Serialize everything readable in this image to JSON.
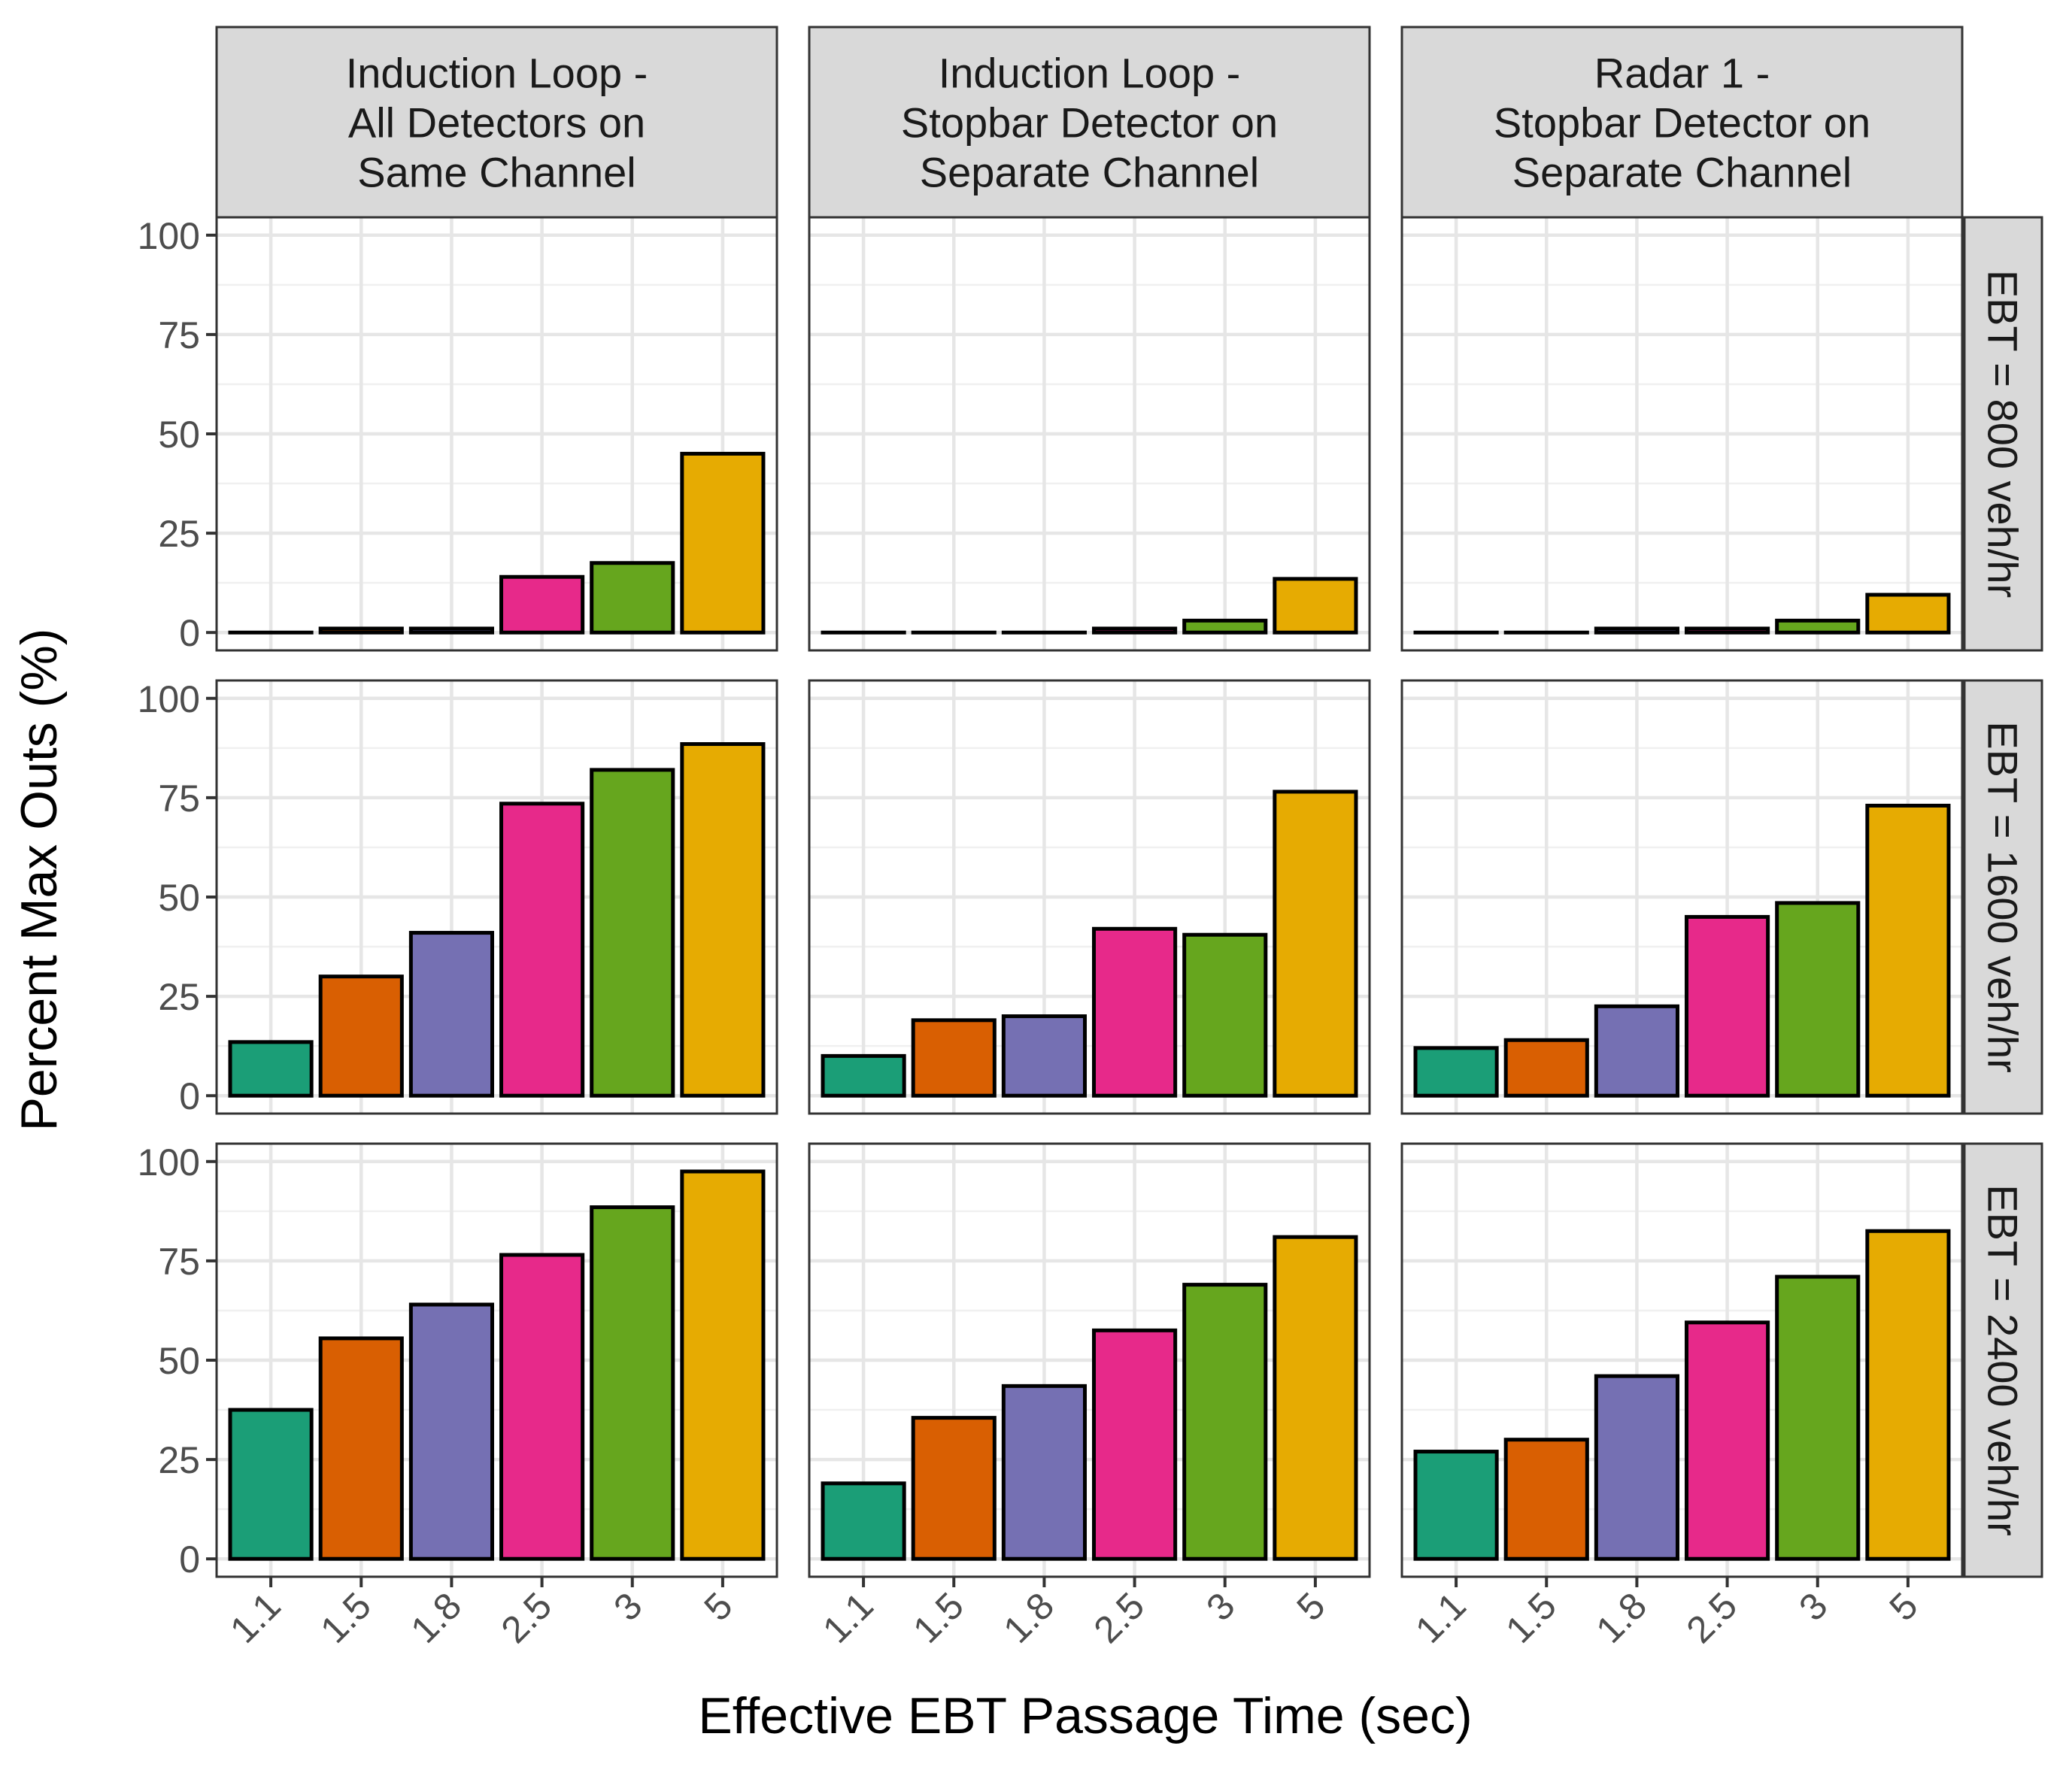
{
  "chart_data": {
    "type": "bar",
    "xlabel": "Effective EBT Passage Time (sec)",
    "ylabel": "Percent Max Outs (%)",
    "ylim": [
      0,
      100
    ],
    "yticks": [
      "0",
      "25",
      "50",
      "75",
      "100"
    ],
    "categories": [
      "1.1",
      "1.5",
      "1.8",
      "2.5",
      "3",
      "5"
    ],
    "colors": [
      "#1b9e77",
      "#d95f02",
      "#7570b3",
      "#e7298a",
      "#66a61e",
      "#e6ab02"
    ],
    "grid": true,
    "columns": [
      {
        "label_lines": [
          "Induction Loop -",
          "All Detectors on",
          "Same Channel"
        ]
      },
      {
        "label_lines": [
          "Induction Loop -",
          "Stopbar Detector on",
          "Separate Channel"
        ]
      },
      {
        "label_lines": [
          "Radar 1 -",
          "Stopbar Detector on",
          "Separate Channel"
        ]
      }
    ],
    "rows": [
      {
        "label": "EBT = 800 veh/hr"
      },
      {
        "label": "EBT = 1600 veh/hr"
      },
      {
        "label": "EBT = 2400 veh/hr"
      }
    ],
    "panels": [
      [
        {
          "values": [
            0,
            1,
            1,
            14,
            17.5,
            45
          ]
        },
        {
          "values": [
            0,
            0,
            0,
            1,
            3,
            13.5
          ]
        },
        {
          "values": [
            0,
            0,
            1,
            1,
            3,
            9.5
          ]
        }
      ],
      [
        {
          "values": [
            13.5,
            30,
            41,
            73.5,
            82,
            88.5
          ]
        },
        {
          "values": [
            10,
            19,
            20,
            42,
            40.5,
            76.5
          ]
        },
        {
          "values": [
            12,
            14,
            22.5,
            45,
            48.5,
            73
          ]
        }
      ],
      [
        {
          "values": [
            37.5,
            55.5,
            64,
            76.5,
            88.5,
            97.5
          ]
        },
        {
          "values": [
            19,
            35.5,
            43.5,
            57.5,
            69,
            81
          ]
        },
        {
          "values": [
            27,
            30,
            46,
            59.5,
            71,
            82.5
          ]
        }
      ]
    ]
  }
}
